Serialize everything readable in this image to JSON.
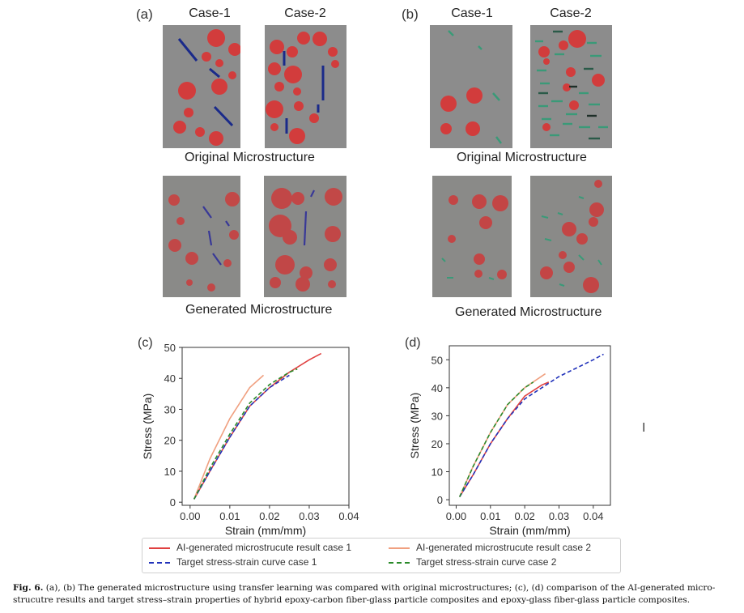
{
  "panels": {
    "a": {
      "label": "(a)",
      "case1": "Case-1",
      "case2": "Case-2",
      "original": "Original Microstructure",
      "generated": "Generated Microstructure"
    },
    "b": {
      "label": "(b)",
      "case1": "Case-1",
      "case2": "Case-2",
      "original": "Original Microstructure",
      "generated": "Generated Microstructure"
    }
  },
  "colors": {
    "matrix": "#8c8c8c",
    "particle": "#d23c3c",
    "carbon_fiber": "#1a2a8a",
    "glass_fiber": "#3a9a78"
  },
  "legend": {
    "items": [
      {
        "label": "AI-generated microstrucute result case 1",
        "color": "#e04040",
        "style": "solid"
      },
      {
        "label": "AI-generated microstrucute result case 2",
        "color": "#f0a080",
        "style": "solid"
      },
      {
        "label": "Target stress-strain curve case 1",
        "color": "#2233bb",
        "style": "dashed"
      },
      {
        "label": "Target stress-strain curve case 2",
        "color": "#2a8a2a",
        "style": "dashed"
      }
    ]
  },
  "caption": {
    "fig_label": "Fig. 6.",
    "text": " (a), (b) The generated microstructure using transfer learning was compared with original microstructures; (c), (d) comparison of the AI-generated micro-strucutre results and target stress–strain properties of hybrid epoxy-carbon fiber-glass particle composites and epoxy-glass fiber-glass particle composites."
  },
  "chart_data": [
    {
      "panel": "(c)",
      "type": "line",
      "title": "",
      "xlabel": "Strain (mm/mm)",
      "ylabel": "Stress (MPa)",
      "xlim": [
        -0.002,
        0.04
      ],
      "ylim": [
        -1,
        50
      ],
      "xticks": [
        "0.00",
        "0.01",
        "0.02",
        "0.03",
        "0.04"
      ],
      "yticks": [
        "0",
        "10",
        "20",
        "30",
        "40",
        "50"
      ],
      "series": [
        {
          "name": "AI-generated microstrucute result case 1",
          "color": "#e04040",
          "dash": "",
          "x": [
            0.001,
            0.005,
            0.01,
            0.015,
            0.02,
            0.025,
            0.03,
            0.033
          ],
          "y": [
            1,
            10,
            21,
            31,
            37,
            42,
            46,
            48
          ]
        },
        {
          "name": "AI-generated microstrucute result case 2",
          "color": "#f0a080",
          "dash": "",
          "x": [
            0.001,
            0.005,
            0.01,
            0.015,
            0.0185
          ],
          "y": [
            1,
            14,
            27,
            37,
            41
          ]
        },
        {
          "name": "Target stress-strain curve case 1",
          "color": "#2233bb",
          "dash": "5,3",
          "x": [
            0.001,
            0.005,
            0.01,
            0.015,
            0.02,
            0.025
          ],
          "y": [
            1,
            10,
            21,
            31,
            37,
            41
          ]
        },
        {
          "name": "Target stress-strain curve case 2",
          "color": "#2a8a2a",
          "dash": "5,3",
          "x": [
            0.001,
            0.005,
            0.01,
            0.015,
            0.02,
            0.025,
            0.027
          ],
          "y": [
            1,
            11,
            22,
            32,
            38,
            42,
            43
          ]
        }
      ]
    },
    {
      "panel": "(d)",
      "type": "line",
      "title": "",
      "xlabel": "Strain (mm/mm)",
      "ylabel": "Stress (MPa)",
      "xlim": [
        -0.002,
        0.045
      ],
      "ylim": [
        -2,
        55
      ],
      "xticks": [
        "0.00",
        "0.01",
        "0.02",
        "0.03",
        "0.04"
      ],
      "yticks": [
        "0",
        "10",
        "20",
        "30",
        "40",
        "50"
      ],
      "series": [
        {
          "name": "AI-generated microstrucute result case 1",
          "color": "#e04040",
          "dash": "",
          "x": [
            0.001,
            0.005,
            0.01,
            0.015,
            0.02,
            0.025,
            0.027
          ],
          "y": [
            1,
            9,
            20,
            29,
            37,
            41,
            42
          ]
        },
        {
          "name": "AI-generated microstrucute result case 2",
          "color": "#f0a080",
          "dash": "",
          "x": [
            0.001,
            0.005,
            0.01,
            0.015,
            0.02,
            0.026
          ],
          "y": [
            1,
            12,
            24,
            34,
            40,
            45
          ]
        },
        {
          "name": "Target stress-strain curve case 1",
          "color": "#2233bb",
          "dash": "5,3",
          "x": [
            0.001,
            0.005,
            0.01,
            0.015,
            0.02,
            0.025,
            0.03,
            0.035,
            0.04,
            0.043
          ],
          "y": [
            1,
            9,
            20,
            29,
            36,
            40,
            44,
            47,
            50,
            52
          ]
        },
        {
          "name": "Target stress-strain curve case 2",
          "color": "#2a8a2a",
          "dash": "5,3",
          "x": [
            0.001,
            0.005,
            0.01,
            0.015,
            0.02,
            0.0225
          ],
          "y": [
            1,
            12,
            24,
            34,
            40,
            42
          ]
        }
      ]
    }
  ]
}
